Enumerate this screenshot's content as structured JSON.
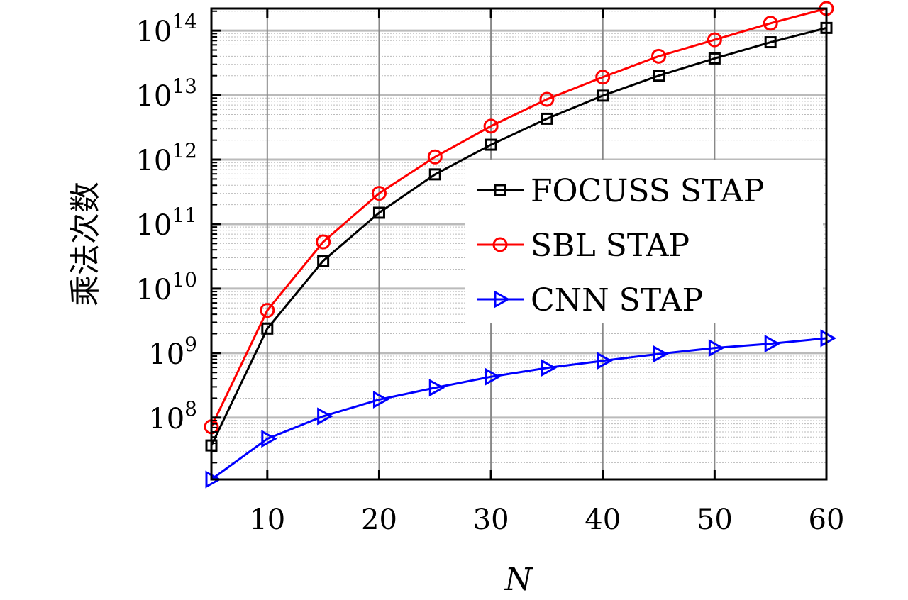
{
  "chart_data": {
    "type": "line",
    "title": "",
    "xlabel": "N",
    "ylabel": "乘法次数",
    "yscale": "log",
    "xlim": [
      5,
      60
    ],
    "ylim": [
      11000000.0,
      220000000000000.0
    ],
    "grid": true,
    "legend_position": "center-right",
    "x": [
      5,
      10,
      15,
      20,
      25,
      30,
      35,
      40,
      45,
      50,
      55,
      60
    ],
    "xticks": [
      10,
      20,
      30,
      40,
      50,
      60
    ],
    "xtick_labels": [
      "10",
      "20",
      "30",
      "40",
      "50",
      "60"
    ],
    "yticks": [
      8,
      9,
      10,
      11,
      12,
      13,
      14
    ],
    "ytick_labels": [
      {
        "base": "10",
        "exp": "8"
      },
      {
        "base": "10",
        "exp": "9"
      },
      {
        "base": "10",
        "exp": "10"
      },
      {
        "base": "10",
        "exp": "11"
      },
      {
        "base": "10",
        "exp": "12"
      },
      {
        "base": "10",
        "exp": "13"
      },
      {
        "base": "10",
        "exp": "14"
      }
    ],
    "series": [
      {
        "name": "FOCUSS STAP",
        "color": "#000000",
        "marker": "square",
        "values": [
          37000000.0,
          2400000000.0,
          27000000000.0,
          150000000000.0,
          590000000000.0,
          1700000000000.0,
          4300000000000.0,
          9800000000000.0,
          20000000000000.0,
          37000000000000.0,
          66000000000000.0,
          110000000000000.0
        ]
      },
      {
        "name": "SBL STAP",
        "color": "#ff0000",
        "marker": "circle",
        "values": [
          72000000.0,
          4600000000.0,
          53000000000.0,
          300000000000.0,
          1100000000000.0,
          3300000000000.0,
          8600000000000.0,
          19000000000000.0,
          40000000000000.0,
          72000000000000.0,
          130000000000000.0,
          220000000000000.0
        ]
      },
      {
        "name": "CNN STAP",
        "color": "#0000ff",
        "marker": "triangle-right",
        "values": [
          11000000.0,
          47000000.0,
          105000000.0,
          190000000.0,
          290000000.0,
          430000000.0,
          590000000.0,
          760000000.0,
          970000000.0,
          1200000000.0,
          1400000000.0,
          1700000000.0
        ]
      }
    ]
  }
}
